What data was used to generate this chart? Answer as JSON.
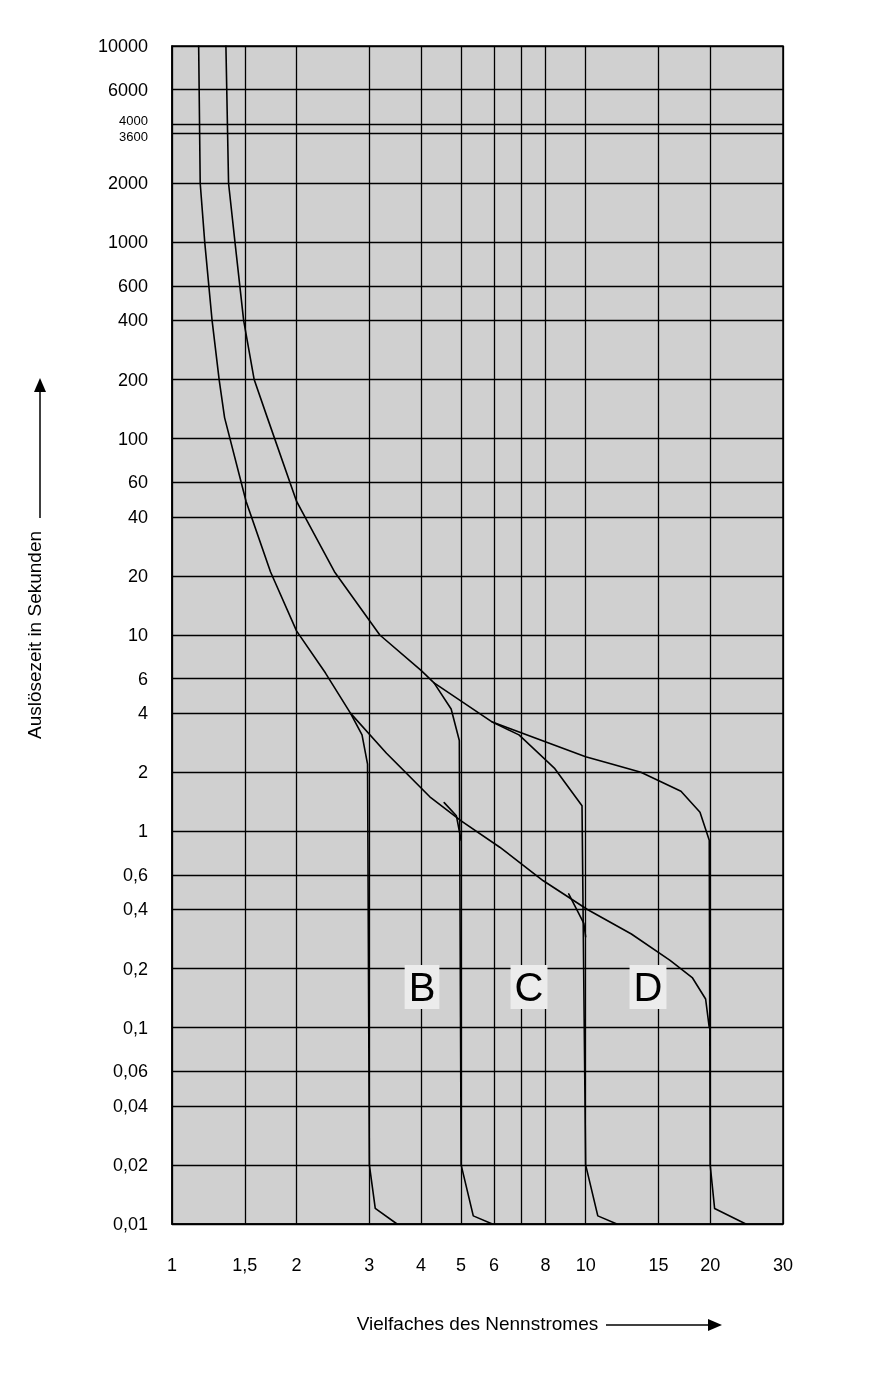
{
  "chart_data": {
    "type": "line",
    "xlabel": "Vielfaches des Nennstromes",
    "ylabel": "Auslösezeit in Sekunden",
    "log": "xy",
    "grid": true,
    "marker": "none",
    "line_style": "solid",
    "xlim": [
      1,
      30
    ],
    "ylim": [
      0.01,
      10000
    ],
    "xticks": [
      1,
      {
        "value": 1.5,
        "label": "1,5"
      },
      2,
      3,
      4,
      5,
      6,
      {
        "value": 7,
        "label": null
      },
      8,
      10,
      15,
      20,
      30
    ],
    "yticks": [
      {
        "value": 0.01,
        "label": "0,01"
      },
      {
        "value": 0.02,
        "label": "0,02"
      },
      {
        "value": 0.04,
        "label": "0,04"
      },
      {
        "value": 0.06,
        "label": "0,06"
      },
      {
        "value": 0.1,
        "label": "0,1"
      },
      {
        "value": 0.2,
        "label": "0,2"
      },
      {
        "value": 0.4,
        "label": "0,4"
      },
      {
        "value": 0.6,
        "label": "0,6"
      },
      1,
      2,
      4,
      6,
      10,
      20,
      40,
      60,
      100,
      200,
      400,
      600,
      1000,
      2000,
      3600,
      4000,
      6000,
      10000
    ],
    "series": [
      {
        "color": "#000000",
        "x": [
          1.35,
          1.37,
          1.42,
          1.49,
          1.58,
          1.7,
          2,
          2.47,
          3.18,
          4,
          4.3,
          5.95,
          10,
          13.6,
          17,
          18.9,
          19.9,
          20,
          20.5,
          24.4
        ],
        "values": [
          10000,
          2000,
          1000,
          400,
          200,
          128,
          48,
          21,
          10,
          6.6,
          5.7,
          3.6,
          2.4,
          2.0,
          1.6,
          1.25,
          0.9,
          0.02,
          0.012,
          0.01
        ]
      },
      {
        "color": "#000000",
        "x": [
          1.16,
          1.17,
          1.2,
          1.25,
          1.3,
          1.34,
          1.51,
          1.73,
          2,
          2.35,
          2.7,
          3.3,
          4.2,
          5,
          6.2,
          7.9,
          10.1,
          12.9,
          16,
          18.1,
          19.5,
          19.9
        ],
        "values": [
          10000,
          2000,
          1000,
          400,
          200,
          128,
          48,
          21,
          10.5,
          6.4,
          4,
          2.5,
          1.5,
          1.13,
          0.83,
          0.56,
          0.4,
          0.3,
          0.22,
          0.18,
          0.14,
          0.1
        ]
      },
      {
        "color": "#000000",
        "x": [
          2.7,
          2.88,
          2.97,
          3,
          3.1,
          3.5
        ],
        "values": [
          4,
          3.1,
          2.2,
          0.02,
          0.012,
          0.01
        ]
      },
      {
        "color": "#000000",
        "x": [
          4.3,
          4.73,
          4.95,
          5,
          5.35,
          5.95
        ],
        "values": [
          5.7,
          4.2,
          2.9,
          0.02,
          0.011,
          0.01
        ]
      },
      {
        "color": "#000000",
        "x": [
          4.55,
          4.87,
          5
        ],
        "values": [
          1.4,
          1.2,
          0.9
        ]
      },
      {
        "color": "#000000",
        "x": [
          5.95,
          6.9,
          8.4,
          9.8,
          10,
          10.7,
          11.9
        ],
        "values": [
          3.6,
          3.1,
          2.1,
          1.35,
          0.02,
          0.011,
          0.01
        ]
      },
      {
        "color": "#000000",
        "x": [
          9.1,
          9.9,
          10
        ],
        "values": [
          0.48,
          0.34,
          0.29
        ]
      }
    ],
    "annotations": [
      "B",
      "C",
      "D"
    ]
  }
}
